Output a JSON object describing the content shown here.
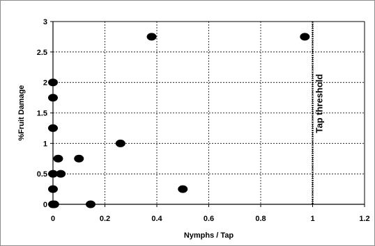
{
  "chart_data": {
    "type": "scatter",
    "title": "",
    "xlabel": "Nymphs / Tap",
    "ylabel": "%Fruit Damage",
    "xlim": [
      0,
      1.2
    ],
    "ylim": [
      0,
      3
    ],
    "grid": true,
    "x_ticks": [
      "0",
      "0.2",
      "0.4",
      "0.6",
      "0.8",
      "1",
      "1.2"
    ],
    "y_ticks": [
      "0",
      "0.5",
      "1",
      "1.5",
      "2",
      "2.5",
      "3"
    ],
    "series": [
      {
        "marker_color": "#000000",
        "points": [
          {
            "x": 0.0,
            "y": 2.0
          },
          {
            "x": 0.0,
            "y": 1.75
          },
          {
            "x": 0.0,
            "y": 1.25
          },
          {
            "x": 0.0,
            "y": 0.5
          },
          {
            "x": 0.0,
            "y": 0.25
          },
          {
            "x": 0.0,
            "y": 0.0
          },
          {
            "x": 0.005,
            "y": 0.0
          },
          {
            "x": 0.02,
            "y": 0.75
          },
          {
            "x": 0.03,
            "y": 0.5
          },
          {
            "x": 0.1,
            "y": 0.75
          },
          {
            "x": 0.145,
            "y": 0.0
          },
          {
            "x": 0.26,
            "y": 1.0
          },
          {
            "x": 0.38,
            "y": 2.75
          },
          {
            "x": 0.5,
            "y": 0.25
          },
          {
            "x": 0.97,
            "y": 2.75
          }
        ]
      }
    ],
    "threshold": {
      "x": 1.0,
      "label": "Tap threshold",
      "line_style": "dotted"
    }
  }
}
